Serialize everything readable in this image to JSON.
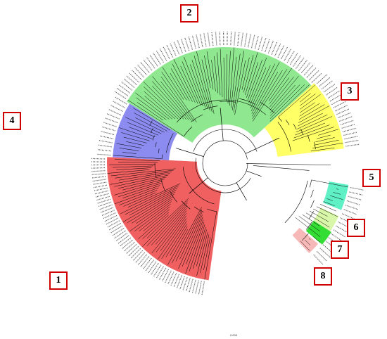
{
  "clade_labels": [
    "1",
    "2",
    "3",
    "4",
    "5",
    "6",
    "7",
    "8"
  ],
  "scale_label": "0.009",
  "colors": {
    "clade_1": "#f06060",
    "clade_2": "#8fe88f",
    "clade_3": "#ffff66",
    "clade_4": "#8c8cf0",
    "clade_5": "#5ff0c6",
    "clade_6a": "#d9f7a8",
    "clade_6b": "#33dd33",
    "clade_7": "#f7b8b8",
    "box_border": "#d10000",
    "branch": "#000000"
  }
}
